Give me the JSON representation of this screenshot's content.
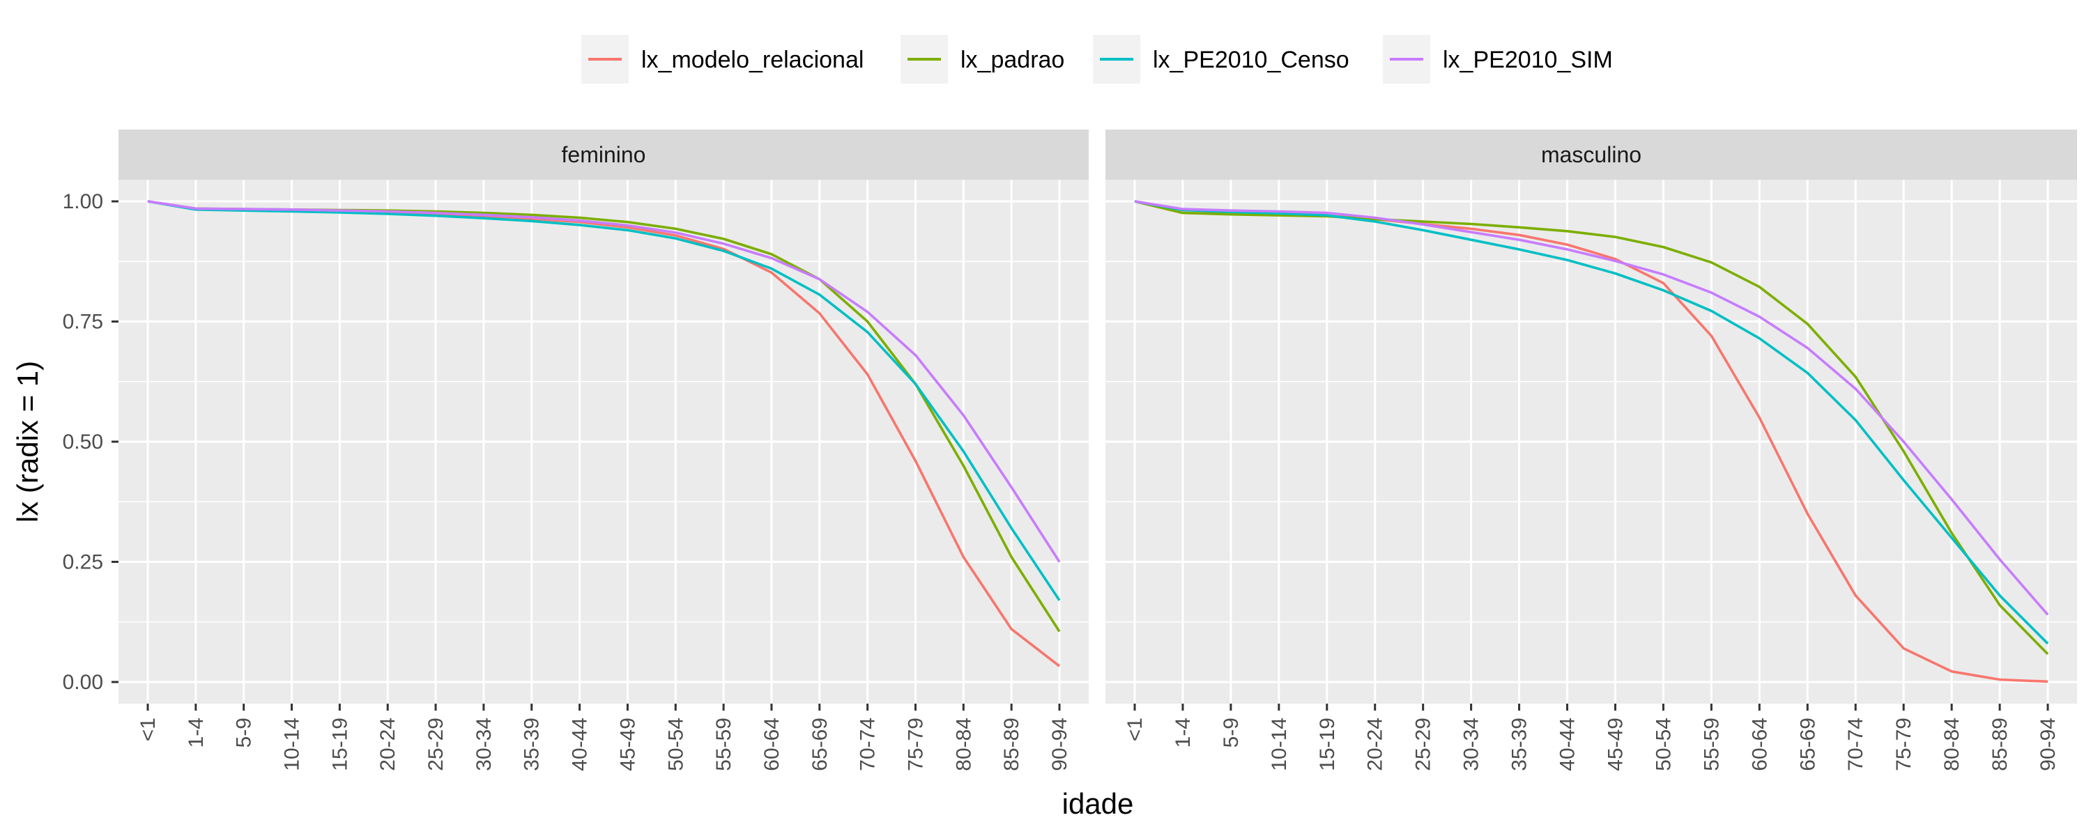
{
  "colors": {
    "panel_bg": "#EBEBEB",
    "grid": "#FFFFFF",
    "strip_bg": "#D9D9D9",
    "legend_key_bg": "#F2F2F2",
    "tick_text": "#4D4D4D",
    "tick_mark": "#333333"
  },
  "chart_data": {
    "type": "line",
    "facet_by": "sex",
    "xlabel": "idade",
    "ylabel": "lx (radix = 1)",
    "ylim": [
      -0.045,
      1.045
    ],
    "y_ticks": [
      0.0,
      0.25,
      0.5,
      0.75,
      1.0
    ],
    "y_tick_labels": [
      "0.00",
      "0.25",
      "0.50",
      "0.75",
      "1.00"
    ],
    "categories": [
      "<1",
      "1-4",
      "5-9",
      "10-14",
      "15-19",
      "20-24",
      "25-29",
      "30-34",
      "35-39",
      "40-44",
      "45-49",
      "50-54",
      "55-59",
      "60-64",
      "65-69",
      "70-74",
      "75-79",
      "80-84",
      "85-89",
      "90-94"
    ],
    "legend_position": "top",
    "legend": [
      "lx_modelo_relacional",
      "lx_padrao",
      "lx_PE2010_Censo",
      "lx_PE2010_SIM"
    ],
    "series_colors": {
      "lx_modelo_relacional": "#F8766D",
      "lx_padrao": "#7CAE00",
      "lx_PE2010_Censo": "#00BFC4",
      "lx_PE2010_SIM": "#C77CFF"
    },
    "grid": true,
    "facets": [
      {
        "label": "feminino",
        "series": [
          {
            "name": "lx_modelo_relacional",
            "values": [
              1.0,
              0.985,
              0.983,
              0.981,
              0.979,
              0.977,
              0.973,
              0.969,
              0.964,
              0.957,
              0.946,
              0.929,
              0.901,
              0.852,
              0.767,
              0.64,
              0.46,
              0.26,
              0.11,
              0.033
            ]
          },
          {
            "name": "lx_padrao",
            "values": [
              1.0,
              0.985,
              0.984,
              0.983,
              0.982,
              0.981,
              0.979,
              0.976,
              0.972,
              0.966,
              0.957,
              0.943,
              0.922,
              0.89,
              0.838,
              0.75,
              0.62,
              0.45,
              0.26,
              0.105
            ]
          },
          {
            "name": "lx_PE2010_Censo",
            "values": [
              1.0,
              0.983,
              0.981,
              0.979,
              0.977,
              0.974,
              0.97,
              0.965,
              0.959,
              0.951,
              0.94,
              0.923,
              0.897,
              0.86,
              0.806,
              0.728,
              0.62,
              0.48,
              0.32,
              0.17
            ]
          },
          {
            "name": "lx_PE2010_SIM",
            "values": [
              1.0,
              0.985,
              0.984,
              0.983,
              0.981,
              0.979,
              0.976,
              0.972,
              0.967,
              0.96,
              0.95,
              0.935,
              0.912,
              0.882,
              0.838,
              0.77,
              0.68,
              0.555,
              0.405,
              0.25
            ]
          }
        ]
      },
      {
        "label": "masculino",
        "series": [
          {
            "name": "lx_modelo_relacional",
            "values": [
              1.0,
              0.976,
              0.974,
              0.972,
              0.97,
              0.963,
              0.953,
              0.943,
              0.93,
              0.91,
              0.88,
              0.83,
              0.72,
              0.55,
              0.35,
              0.18,
              0.07,
              0.022,
              0.005,
              0.001
            ]
          },
          {
            "name": "lx_padrao",
            "values": [
              1.0,
              0.976,
              0.973,
              0.971,
              0.969,
              0.963,
              0.958,
              0.953,
              0.946,
              0.938,
              0.926,
              0.905,
              0.873,
              0.822,
              0.745,
              0.635,
              0.48,
              0.31,
              0.16,
              0.058
            ]
          },
          {
            "name": "lx_PE2010_Censo",
            "values": [
              1.0,
              0.982,
              0.978,
              0.975,
              0.971,
              0.958,
              0.94,
              0.92,
              0.9,
              0.878,
              0.85,
              0.815,
              0.772,
              0.715,
              0.643,
              0.545,
              0.42,
              0.3,
              0.18,
              0.08
            ]
          },
          {
            "name": "lx_PE2010_SIM",
            "values": [
              1.0,
              0.984,
              0.981,
              0.979,
              0.976,
              0.966,
              0.952,
              0.936,
              0.92,
              0.9,
              0.876,
              0.848,
              0.81,
              0.76,
              0.695,
              0.61,
              0.5,
              0.38,
              0.255,
              0.14
            ]
          }
        ]
      }
    ]
  }
}
